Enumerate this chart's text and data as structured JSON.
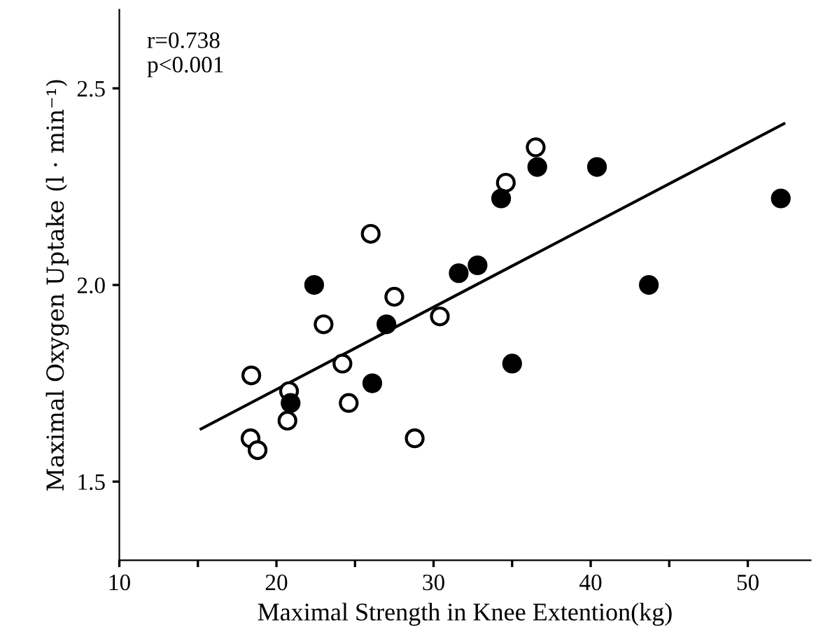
{
  "chart_data": {
    "type": "scatter",
    "xlabel": "Maximal Strength in Knee Extention(kg)",
    "ylabel": "Maximal Oxygen Uptake (l · min⁻¹)",
    "xlim": [
      10,
      54
    ],
    "ylim": [
      1.3,
      2.7
    ],
    "xticks": [
      10,
      {
        "value": 15,
        "label": null
      },
      20,
      {
        "value": 25,
        "label": null
      },
      30,
      {
        "value": 35,
        "label": null
      },
      40,
      {
        "value": 45,
        "label": null
      },
      50
    ],
    "yticks": [
      1.5,
      {
        "value": 2,
        "label": "2.0"
      },
      2.5
    ],
    "annotations": [
      "r=0.738\np<0.001"
    ],
    "grid": false,
    "legend": false,
    "series": [
      {
        "color": "#ffffff",
        "marker": "circle",
        "x": [
          18.4,
          18.35,
          18.8,
          20.8,
          20.7,
          23.0,
          24.2,
          24.6,
          26.0,
          27.5,
          30.4,
          28.8,
          34.6,
          36.5
        ],
        "values": [
          1.77,
          1.61,
          1.58,
          1.73,
          1.655,
          1.9,
          1.8,
          1.7,
          2.13,
          1.97,
          1.92,
          1.61,
          2.26,
          2.35
        ]
      },
      {
        "color": "#000000",
        "marker": "circle",
        "x": [
          20.9,
          22.4,
          26.1,
          27.0,
          31.6,
          32.8,
          34.3,
          36.6,
          40.4,
          35.0,
          43.7,
          52.1
        ],
        "values": [
          1.7,
          2.0,
          1.75,
          1.9,
          2.03,
          2.05,
          2.22,
          2.3,
          2.3,
          1.8,
          2.0,
          2.22
        ]
      },
      {
        "type": "line",
        "color": "#000000",
        "x": [
          15.2,
          52.3
        ],
        "values": [
          1.634,
          2.41
        ]
      }
    ]
  }
}
